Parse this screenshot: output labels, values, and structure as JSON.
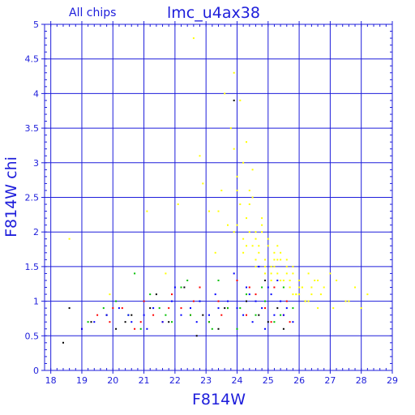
{
  "chart_data": {
    "type": "scatter",
    "title": "lmc_u4ax38",
    "subtitle": "All chips",
    "xlabel": "F814W",
    "ylabel": "F814W chi",
    "xlim": [
      17.8,
      29
    ],
    "ylim": [
      0,
      5
    ],
    "x_ticks": [
      18,
      19,
      20,
      21,
      22,
      23,
      24,
      25,
      26,
      27,
      28,
      29
    ],
    "x_tick_labels": [
      "18",
      "19",
      "20",
      "21",
      "22",
      "23",
      "24",
      "25",
      "26",
      "27",
      "28",
      "29"
    ],
    "y_ticks": [
      0,
      0.5,
      1,
      1.5,
      2,
      2.5,
      3,
      3.5,
      4,
      4.5,
      5
    ],
    "y_tick_labels": [
      "0",
      "0.5",
      "1",
      "1.5",
      "2",
      "2.5",
      "3",
      "3.5",
      "4",
      "4.5",
      "5"
    ],
    "grid": true,
    "colors": {
      "axis": "#1d1ddb",
      "grid": "#1d1ddb",
      "yellow": "#ffff00",
      "black": "#000000",
      "red": "#ff0000",
      "green": "#00c000",
      "blue": "#0000ff"
    },
    "series": [
      {
        "color": "yellow",
        "x": [
          22.6,
          22.8,
          23.1,
          23.3,
          23.5,
          23.6,
          23.7,
          23.8,
          23.9,
          24.0,
          24.1,
          24.2,
          24.3,
          24.4,
          24.5,
          24.6,
          24.7,
          24.8,
          24.9,
          25.0,
          25.1,
          25.2,
          25.3,
          25.4,
          25.5,
          25.6,
          25.7,
          25.8,
          25.9,
          26.0,
          26.1,
          26.2,
          26.3,
          26.4,
          26.5,
          26.6,
          26.8,
          27.0,
          27.2,
          27.5,
          27.8,
          28.0,
          28.2,
          23.9,
          24.0,
          24.2,
          24.3,
          24.5,
          24.6,
          24.8,
          25.0,
          25.2,
          25.4,
          25.6,
          25.8,
          26.0,
          24.1,
          24.4,
          24.7,
          24.9,
          25.1,
          25.3,
          25.5,
          25.7,
          25.9,
          26.2,
          26.4,
          26.7,
          24.0,
          24.3,
          24.6,
          24.9,
          25.2,
          25.5,
          25.8,
          26.1,
          22.9,
          23.4,
          23.9,
          24.5,
          21.1,
          21.7,
          22.1,
          19.9,
          18.6,
          24.2,
          24.6,
          25.1,
          25.4,
          25.7,
          26.0,
          26.3,
          26.6,
          27.1,
          27.6,
          24.4,
          24.8,
          25.3,
          25.6
        ],
        "y": [
          4.8,
          3.1,
          2.3,
          1.7,
          2.6,
          4.0,
          2.1,
          3.5,
          4.3,
          2.8,
          3.9,
          1.9,
          3.3,
          2.4,
          2.9,
          2.0,
          1.8,
          2.2,
          1.6,
          1.9,
          1.5,
          1.7,
          1.4,
          1.6,
          1.3,
          1.5,
          1.2,
          1.4,
          1.1,
          1.3,
          1.2,
          1.0,
          1.4,
          1.1,
          1.3,
          0.9,
          1.2,
          1.4,
          1.3,
          1.0,
          1.2,
          0.9,
          1.1,
          3.2,
          2.6,
          3.0,
          2.2,
          2.5,
          1.9,
          2.0,
          1.8,
          1.6,
          1.7,
          1.4,
          1.5,
          1.2,
          2.4,
          2.0,
          1.7,
          1.5,
          1.3,
          1.6,
          1.2,
          1.3,
          1.1,
          1.0,
          1.2,
          1.1,
          2.1,
          1.8,
          1.6,
          1.4,
          1.5,
          1.3,
          1.1,
          1.2,
          2.7,
          2.3,
          2.0,
          1.8,
          2.3,
          1.4,
          2.4,
          1.1,
          1.9,
          1.7,
          1.5,
          1.4,
          1.3,
          1.2,
          1.1,
          1.0,
          1.3,
          0.9,
          1.0,
          2.6,
          2.1,
          1.8,
          1.6
        ]
      },
      {
        "color": "black",
        "x": [
          18.4,
          18.6,
          19.3,
          20.1,
          20.6,
          21.2,
          21.8,
          22.3,
          22.9,
          23.4,
          23.9,
          24.3,
          24.7,
          25.0,
          25.3,
          25.5,
          21.4,
          22.7,
          23.6,
          24.9,
          19.8,
          20.4
        ],
        "y": [
          0.4,
          0.9,
          0.7,
          0.6,
          0.8,
          0.9,
          0.7,
          1.2,
          0.8,
          0.6,
          3.9,
          1.0,
          0.8,
          0.7,
          0.9,
          0.6,
          1.1,
          0.5,
          0.9,
          1.3,
          0.8,
          0.7
        ]
      },
      {
        "color": "red",
        "x": [
          19.0,
          19.5,
          19.9,
          20.3,
          20.7,
          21.0,
          21.3,
          21.6,
          21.9,
          22.2,
          22.5,
          22.8,
          23.1,
          23.4,
          23.7,
          24.0,
          24.3,
          24.6,
          24.9,
          25.2,
          25.5,
          25.7,
          20.0,
          20.9,
          21.8,
          22.6,
          23.5,
          24.4,
          25.1,
          25.6
        ],
        "y": [
          0.6,
          0.8,
          0.7,
          0.9,
          0.6,
          1.0,
          0.8,
          0.7,
          1.1,
          0.9,
          0.8,
          1.2,
          0.7,
          1.0,
          0.9,
          1.3,
          0.8,
          1.1,
          0.9,
          1.2,
          0.8,
          0.7,
          0.9,
          0.7,
          0.9,
          1.0,
          0.8,
          1.2,
          0.7,
          1.0
        ]
      },
      {
        "color": "green",
        "x": [
          19.2,
          19.7,
          20.1,
          20.5,
          20.9,
          21.2,
          21.5,
          21.9,
          22.2,
          22.5,
          22.8,
          23.1,
          23.4,
          23.7,
          24.0,
          24.3,
          24.6,
          24.9,
          25.2,
          25.5,
          25.8,
          20.7,
          21.7,
          22.4,
          23.2,
          24.1,
          24.8,
          25.4
        ],
        "y": [
          0.7,
          0.9,
          1.0,
          0.8,
          0.6,
          1.1,
          0.9,
          0.7,
          1.2,
          0.8,
          1.0,
          0.7,
          1.3,
          0.9,
          0.6,
          1.1,
          0.8,
          1.0,
          0.7,
          1.2,
          0.9,
          1.4,
          0.8,
          1.3,
          0.6,
          0.9,
          1.2,
          0.8
        ]
      },
      {
        "color": "blue",
        "x": [
          19.0,
          19.4,
          19.8,
          20.2,
          20.6,
          21.0,
          21.3,
          21.6,
          21.9,
          22.2,
          22.5,
          22.8,
          23.1,
          23.4,
          23.7,
          24.0,
          24.2,
          24.4,
          24.6,
          24.8,
          25.0,
          25.2,
          25.4,
          25.6,
          25.8,
          23.9,
          24.3,
          24.7,
          25.1,
          25.5,
          22.0,
          22.7,
          23.3,
          21.1,
          20.5,
          24.5,
          24.9,
          25.3
        ],
        "y": [
          0.6,
          0.7,
          0.8,
          0.9,
          0.7,
          0.8,
          0.9,
          0.7,
          1.0,
          0.8,
          0.9,
          1.0,
          0.8,
          0.9,
          1.0,
          0.9,
          0.8,
          1.1,
          1.0,
          0.9,
          1.2,
          0.8,
          1.0,
          0.9,
          0.7,
          1.4,
          1.2,
          1.5,
          1.1,
          0.8,
          1.2,
          0.7,
          1.1,
          0.6,
          0.8,
          0.7,
          0.6,
          1.3
        ]
      }
    ]
  }
}
